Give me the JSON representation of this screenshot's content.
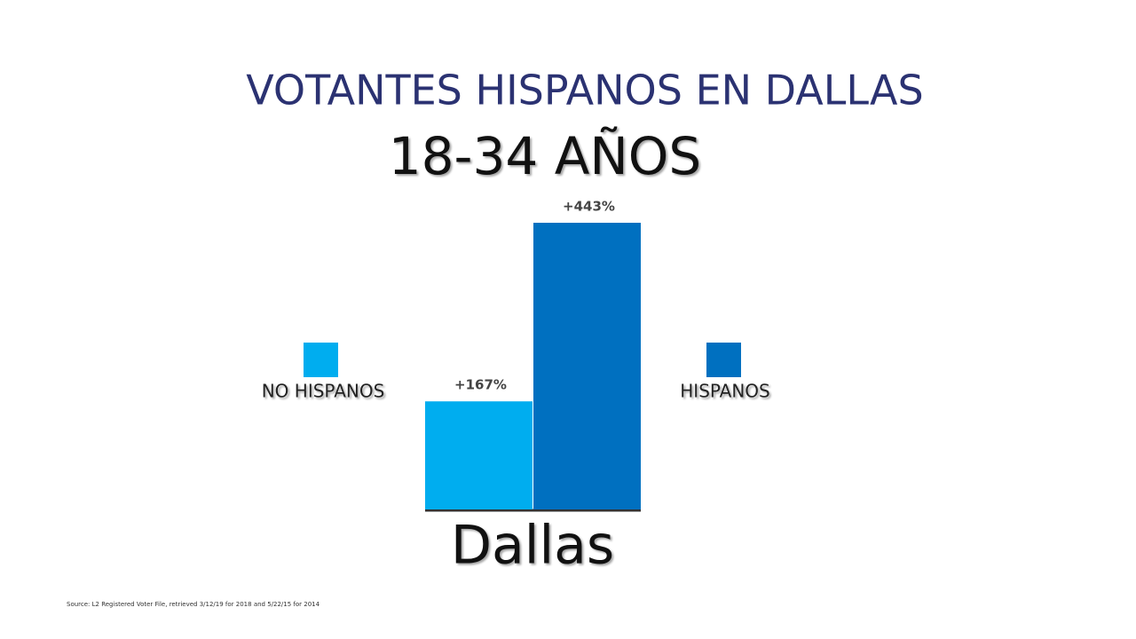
{
  "chart_data": {
    "type": "bar",
    "title": "VOTANTES HISPANOS EN DALLAS",
    "subtitle": "18-34 AÑOS",
    "categories": [
      "Dallas"
    ],
    "series": [
      {
        "name": "NO HISPANOS",
        "color": "#00adef",
        "values": [
          167
        ],
        "value_labels": [
          "+167%"
        ]
      },
      {
        "name": "HISPANOS",
        "color": "#0070c0",
        "values": [
          443
        ],
        "value_labels": [
          "+443%"
        ]
      }
    ],
    "source": "Source: L2 Registered Voter File, retrieved 3/12/19 for 2018 and 5/22/15 for 2014"
  }
}
